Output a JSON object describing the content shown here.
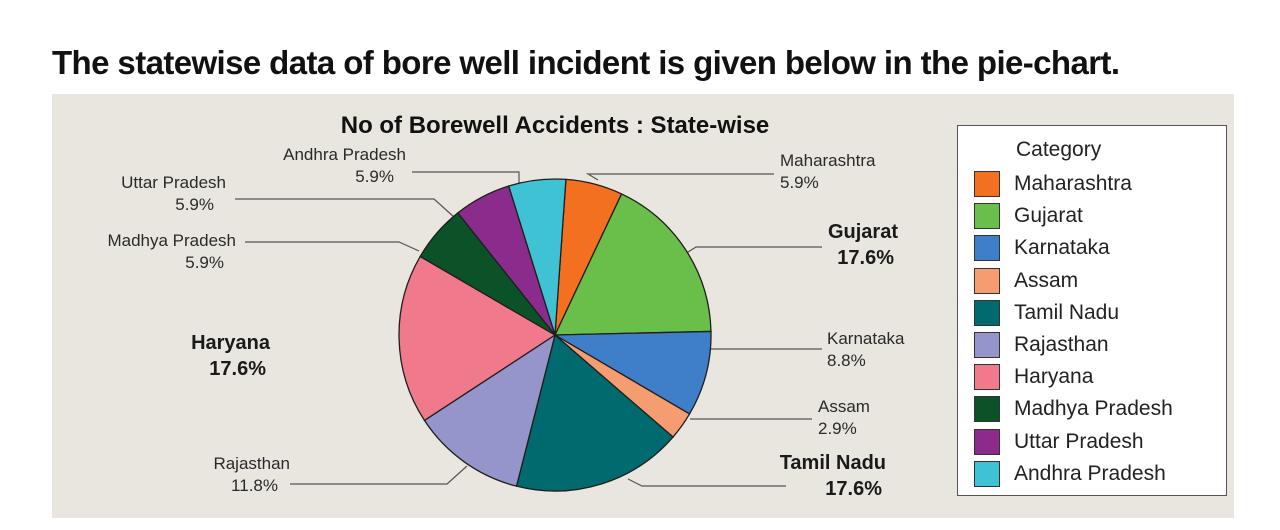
{
  "page": {
    "heading": "The statewise data of bore well incident is given below in the pie-chart."
  },
  "chart_data": {
    "type": "pie",
    "title": "No of Borewell Accidents : State-wise",
    "legend_title": "Category",
    "legend_position": "right",
    "slices": [
      {
        "name": "Maharashtra",
        "value": 5.9,
        "label": "5.9%",
        "color": "#f37021",
        "emphasis": false
      },
      {
        "name": "Gujarat",
        "value": 17.6,
        "label": "17.6%",
        "color": "#6abf4b",
        "emphasis": true
      },
      {
        "name": "Karnataka",
        "value": 8.8,
        "label": "8.8%",
        "color": "#3f7fc9",
        "emphasis": false
      },
      {
        "name": "Assam",
        "value": 2.9,
        "label": "2.9%",
        "color": "#f59c70",
        "emphasis": false
      },
      {
        "name": "Tamil Nadu",
        "value": 17.6,
        "label": "17.6%",
        "color": "#006a6e",
        "emphasis": true
      },
      {
        "name": "Rajasthan",
        "value": 11.8,
        "label": "11.8%",
        "color": "#9595cc",
        "emphasis": false
      },
      {
        "name": "Haryana",
        "value": 17.6,
        "label": "17.6%",
        "color": "#f07a8c",
        "emphasis": true
      },
      {
        "name": "Madhya Pradesh",
        "value": 5.9,
        "label": "5.9%",
        "color": "#0b5229",
        "emphasis": false
      },
      {
        "name": "Uttar Pradesh",
        "value": 5.9,
        "label": "5.9%",
        "color": "#8b2c8c",
        "emphasis": false
      },
      {
        "name": "Andhra Pradesh",
        "value": 5.9,
        "label": "5.9%",
        "color": "#3fc2d4",
        "emphasis": false
      }
    ]
  }
}
